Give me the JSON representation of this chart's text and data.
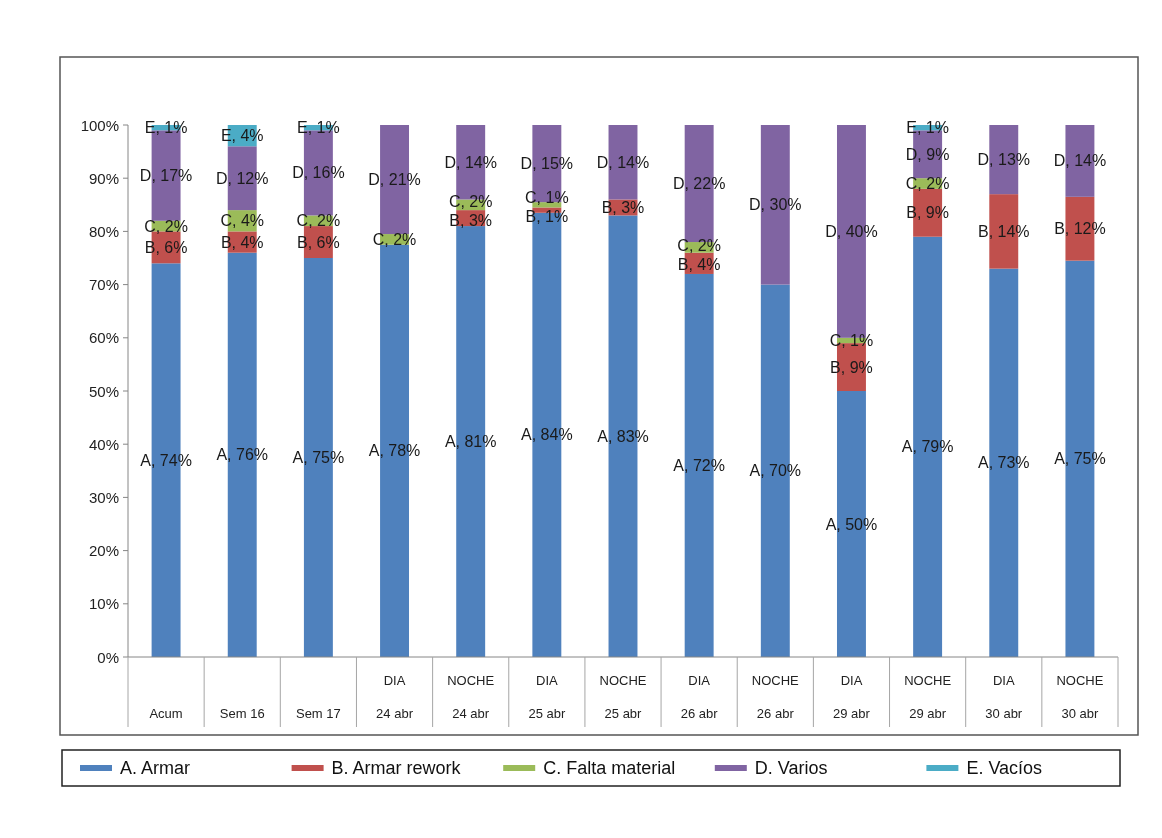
{
  "chart_data": {
    "type": "bar",
    "stacked": true,
    "categories": [
      "Acum",
      "Sem 16",
      "Sem 17",
      "DIA\n24 abr",
      "NOCHE\n24 abr",
      "DIA\n25 abr",
      "NOCHE\n25 abr",
      "DIA\n26 abr",
      "NOCHE\n26 abr",
      "DIA\n29 abr",
      "NOCHE\n29 abr",
      "DIA\n30 abr",
      "NOCHE\n30 abr"
    ],
    "ylim": [
      0,
      100
    ],
    "yticks": [
      {
        "value": 0,
        "label": "0%"
      },
      {
        "value": 10,
        "label": "10%"
      },
      {
        "value": 20,
        "label": "20%"
      },
      {
        "value": 30,
        "label": "30%"
      },
      {
        "value": 40,
        "label": "40%"
      },
      {
        "value": 50,
        "label": "50%"
      },
      {
        "value": 60,
        "label": "60%"
      },
      {
        "value": 70,
        "label": "70%"
      },
      {
        "value": 80,
        "label": "80%"
      },
      {
        "value": 90,
        "label": "90%"
      },
      {
        "value": 100,
        "label": "100%"
      }
    ],
    "legend": "bottom",
    "series": [
      {
        "name": "A. Armar",
        "color": "#4f81bd",
        "values": [
          74,
          76,
          75,
          77.5,
          81,
          83.5,
          83,
          72,
          70,
          50,
          79,
          73,
          74.5
        ],
        "value_labels": [
          "A, 74%",
          "A, 76%",
          "A, 75%",
          "A, 78%",
          "A, 81%",
          "A, 84%",
          "A, 83%",
          "A, 72%",
          "A, 70%",
          "A, 50%",
          "A, 79%",
          "A, 73%",
          "A, 75%"
        ]
      },
      {
        "name": "B. Armar rework",
        "color": "#c0504d",
        "values": [
          6,
          4,
          6,
          null,
          3,
          1,
          3,
          4,
          null,
          9,
          9,
          14,
          12
        ],
        "value_labels": [
          "B, 6%",
          "B, 4%",
          "B, 6%",
          null,
          "B, 3%",
          "B, 1%",
          "B, 3%",
          "B, 4%",
          null,
          "B, 9%",
          "B, 9%",
          "B, 14%",
          "B, 12%"
        ]
      },
      {
        "name": "C. Falta material",
        "color": "#9bbb59",
        "values": [
          2,
          4,
          2,
          2,
          2,
          1,
          null,
          2,
          null,
          1,
          2,
          null,
          null
        ],
        "value_labels": [
          "C, 2%",
          "C, 4%",
          "C, 2%",
          "C, 2%",
          "C, 2%",
          "C, 1%",
          null,
          "C, 2%",
          null,
          "C, 1%",
          "C, 2%",
          null,
          null
        ]
      },
      {
        "name": "D. Varios",
        "color": "#8064a2",
        "values": [
          17,
          12,
          16,
          20.5,
          14,
          14.5,
          14,
          22,
          30,
          40,
          9,
          13,
          13.5
        ],
        "value_labels": [
          "D, 17%",
          "D, 12%",
          "D, 16%",
          "D, 21%",
          "D, 14%",
          "D, 15%",
          "D, 14%",
          "D, 22%",
          "D, 30%",
          "D, 40%",
          "D, 9%",
          "D, 13%",
          "D, 14%"
        ]
      },
      {
        "name": "E. Vacíos",
        "color": "#4bacc6",
        "values": [
          1,
          4,
          1,
          null,
          null,
          null,
          null,
          null,
          null,
          null,
          1,
          null,
          null
        ],
        "value_labels": [
          "E, 1%",
          "E, 4%",
          "E, 1%",
          null,
          null,
          null,
          null,
          null,
          null,
          null,
          "E, 1%",
          null,
          null
        ]
      }
    ]
  }
}
